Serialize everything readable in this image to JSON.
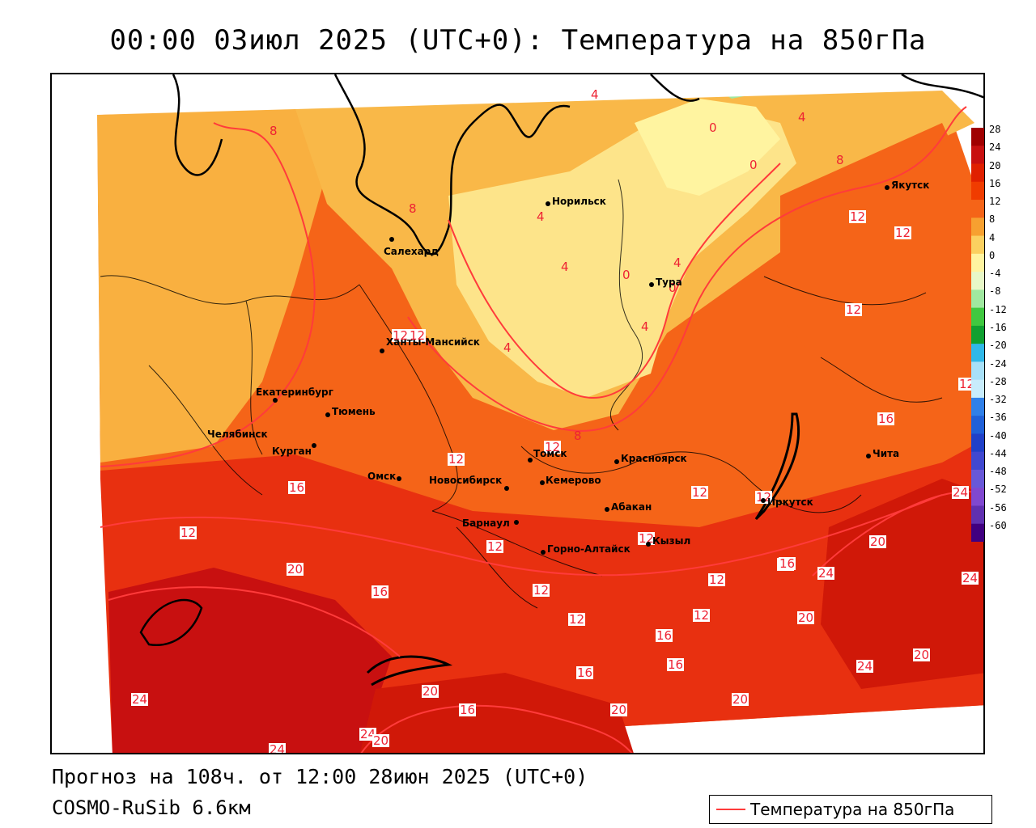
{
  "title": "00:00 03июл 2025 (UTC+0): Температура на 850гПа",
  "footer": {
    "forecast": "Прогноз на 108ч. от 12:00 28июн 2025 (UTC+0)",
    "model": "COSMO-RuSib 6.6км"
  },
  "legend": {
    "label": "Температура на 850гПа",
    "line_color": "#ff3b3b"
  },
  "colorbar": {
    "levels": [
      "28",
      "24",
      "20",
      "16",
      "12",
      "8",
      "4",
      "0",
      "-4",
      "-8",
      "-12",
      "-16",
      "-20",
      "-24",
      "-28",
      "-32",
      "-36",
      "-40",
      "-44",
      "-48",
      "-52",
      "-56",
      "-60"
    ],
    "colors": [
      "#a00000",
      "#c81010",
      "#e02000",
      "#f03c00",
      "#f56418",
      "#f7a030",
      "#fbd060",
      "#fff4a0",
      "#e8f8c8",
      "#a0e8a0",
      "#40c840",
      "#10a030",
      "#30b8e8",
      "#a8e0f8",
      "#c8ecfc",
      "#3080e8",
      "#2060d8",
      "#2040c8",
      "#4048d0",
      "#6858d8",
      "#8048d0",
      "#6030b0",
      "#400080"
    ]
  },
  "cities": [
    {
      "name": "Норильск"
    },
    {
      "name": "Якутск"
    },
    {
      "name": "Салехард"
    },
    {
      "name": "Тура"
    },
    {
      "name": "Ханты-Мансийск"
    },
    {
      "name": "Екатеринбург"
    },
    {
      "name": "Тюмень"
    },
    {
      "name": "Челябинск"
    },
    {
      "name": "Курган"
    },
    {
      "name": "Омск"
    },
    {
      "name": "Новосибирск"
    },
    {
      "name": "Томск"
    },
    {
      "name": "Кемерово"
    },
    {
      "name": "Красноярск"
    },
    {
      "name": "Барнаул"
    },
    {
      "name": "Абакан"
    },
    {
      "name": "Горно-Алтайск"
    },
    {
      "name": "Кызыл"
    },
    {
      "name": "Иркутск"
    },
    {
      "name": "Чита"
    }
  ],
  "contour_labels": [
    "4",
    "8",
    "0",
    "4",
    "0",
    "4",
    "8",
    "12",
    "12",
    "4",
    "0",
    "4",
    "4",
    "0",
    "4",
    "12",
    "12",
    "12",
    "8",
    "12",
    "12",
    "8",
    "12",
    "12",
    "12",
    "16",
    "16",
    "12",
    "12",
    "16",
    "24",
    "12",
    "20",
    "20",
    "16",
    "12",
    "16",
    "24",
    "12",
    "24",
    "12",
    "12",
    "16",
    "20",
    "20",
    "16",
    "16",
    "24",
    "20",
    "24",
    "16",
    "20",
    "20",
    "24",
    "24",
    "24",
    "20",
    "12",
    "16"
  ]
}
